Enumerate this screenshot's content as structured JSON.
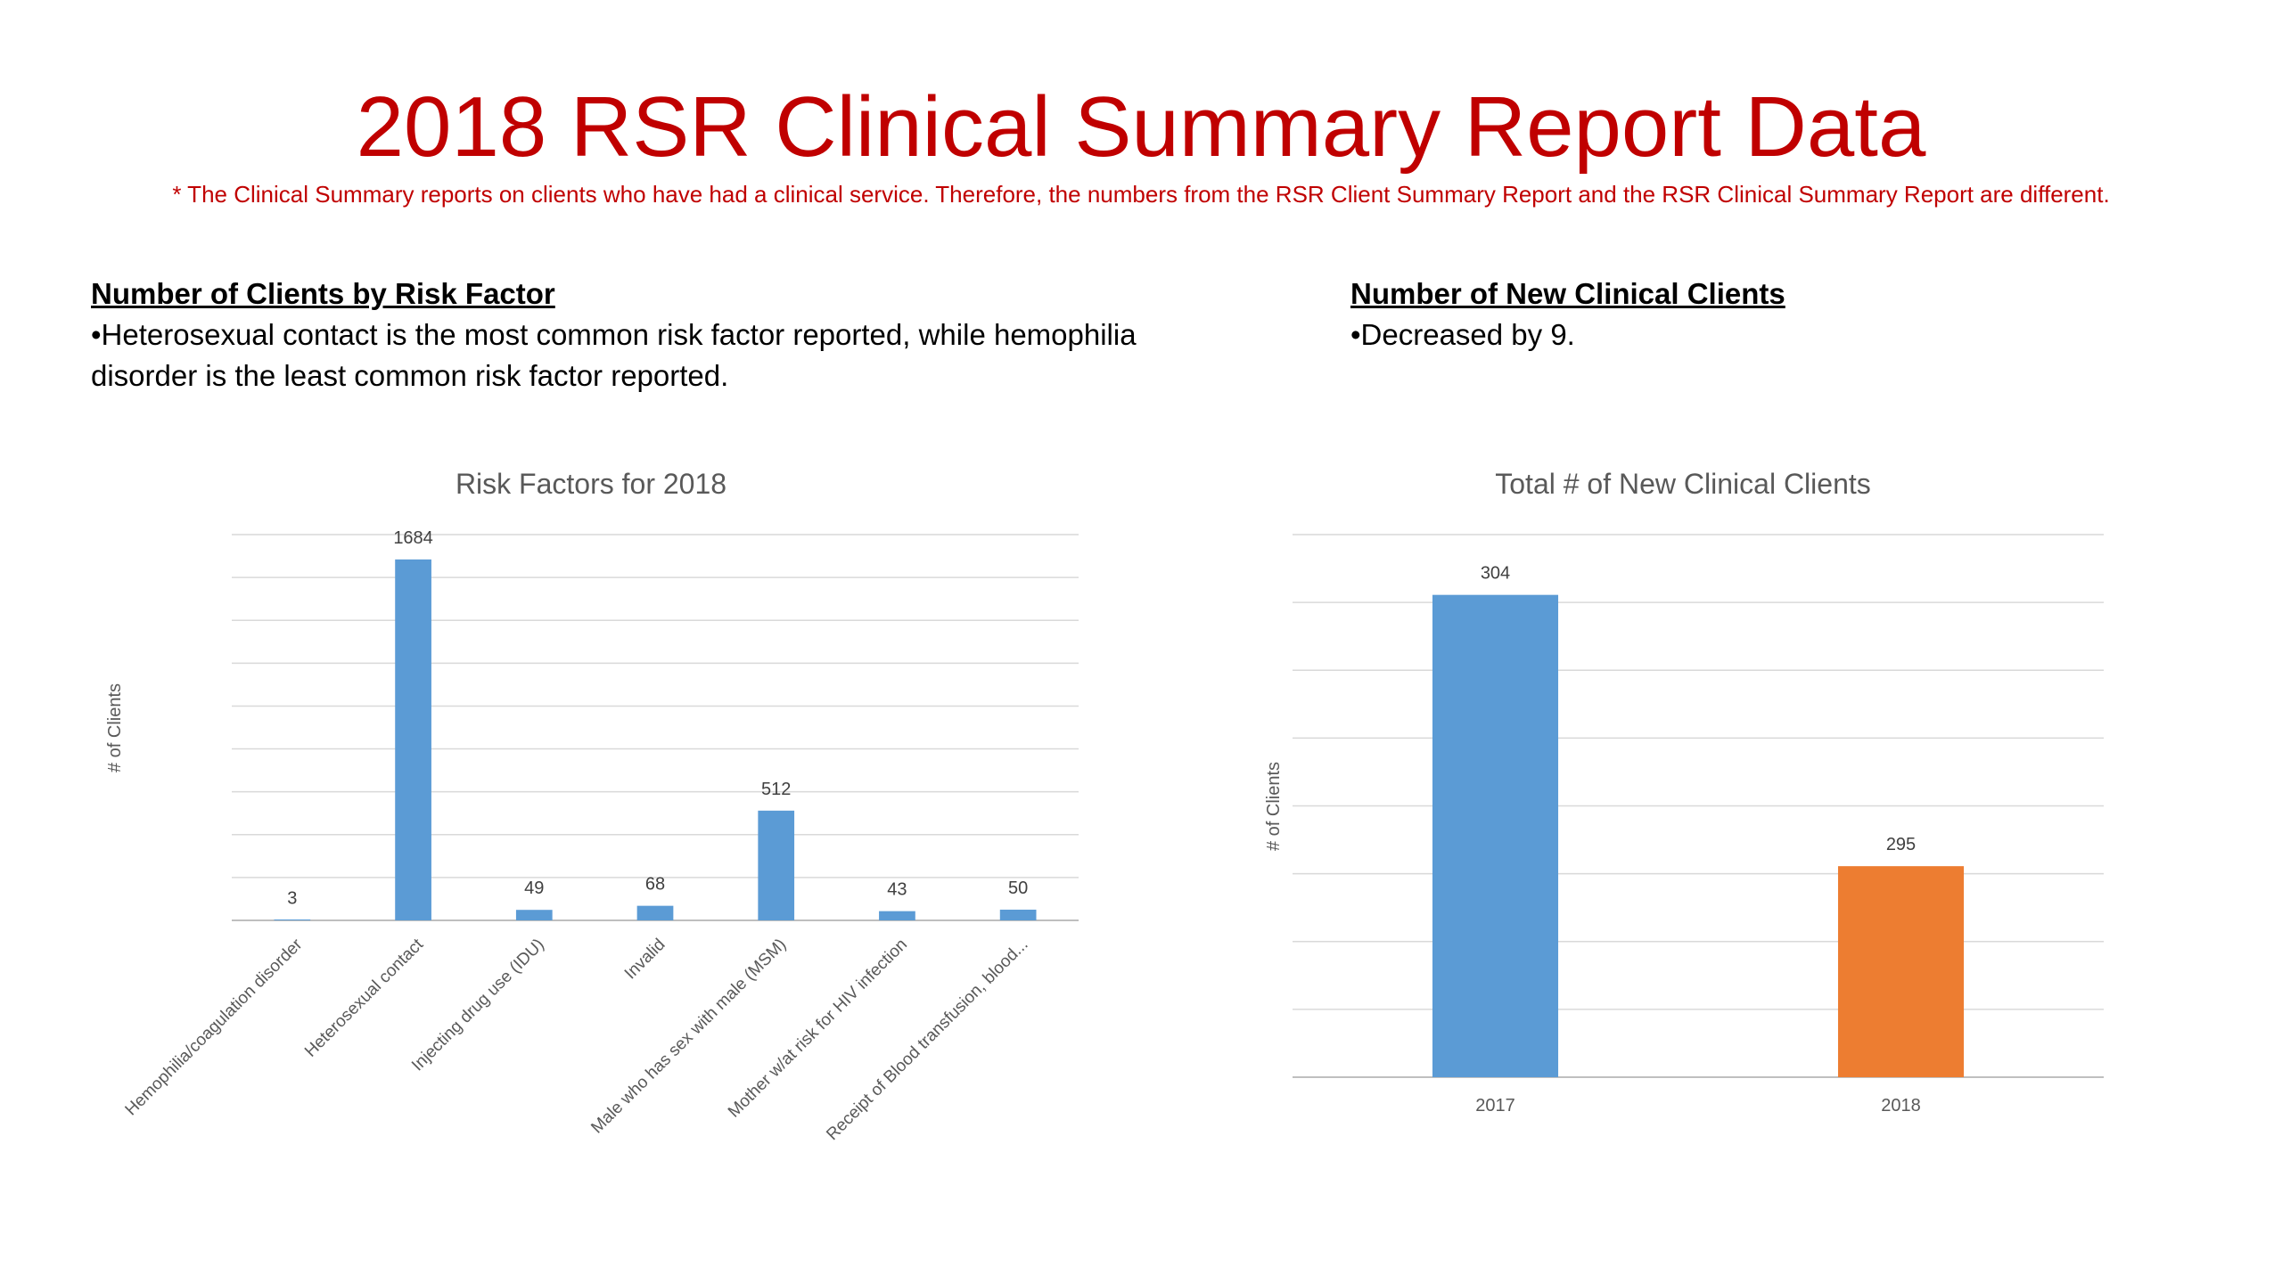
{
  "page": {
    "title": "2018 RSR Clinical Summary Report Data",
    "footnote": "* The Clinical Summary reports on clients who have had a clinical service. Therefore, the numbers from the RSR Client Summary Report and the RSR Clinical Summary Report are different."
  },
  "left_section": {
    "heading": "Number of Clients by Risk Factor",
    "bullet": "•Heterosexual contact is the most common risk factor reported, while hemophilia disorder is the least common risk factor reported."
  },
  "right_section": {
    "heading": "Number of New Clinical Clients",
    "bullet": "•Decreased by 9."
  },
  "chart_data": [
    {
      "type": "bar",
      "title": "Risk Factors for 2018",
      "xlabel": "",
      "ylabel": "# of Clients",
      "categories": [
        "Hemophilia/coagulation disorder",
        "Heterosexual contact",
        "Injecting drug use (IDU)",
        "Invalid",
        "Male who has sex with male (MSM)",
        "Mother w/at risk for HIV infection",
        "Receipt of Blood transfusion, blood..."
      ],
      "values": [
        3,
        1684,
        49,
        68,
        512,
        43,
        50
      ],
      "ylim": [
        0,
        1800
      ],
      "grid": true,
      "color": "#5b9bd5"
    },
    {
      "type": "bar",
      "title": "Total # of New Clinical Clients",
      "xlabel": "",
      "ylabel": "# of Clients",
      "categories": [
        "2017",
        "2018"
      ],
      "values": [
        304,
        295
      ],
      "ylim": [
        288,
        306
      ],
      "grid": true,
      "colors": [
        "#5b9bd5",
        "#ed7d31"
      ]
    }
  ]
}
